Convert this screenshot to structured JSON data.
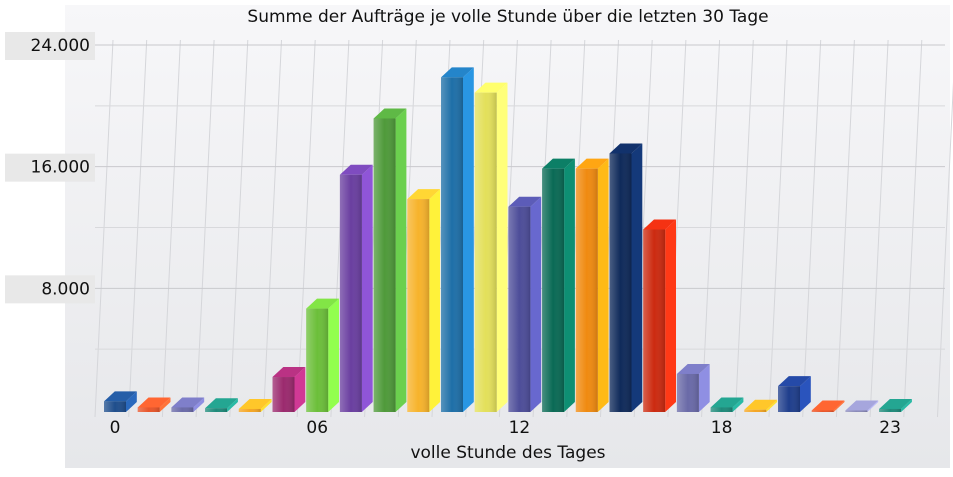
{
  "chart_data": {
    "type": "bar3d",
    "title": "Summe der Aufträge je volle Stunde über die letzten 30 Tage",
    "x_label": "volle Stunde des Tages",
    "categories": [
      "0",
      null,
      null,
      null,
      null,
      null,
      "06",
      null,
      null,
      null,
      null,
      null,
      "12",
      null,
      null,
      null,
      null,
      null,
      "18",
      null,
      null,
      null,
      null,
      "23"
    ],
    "values": [
      700,
      300,
      300,
      250,
      200,
      2300,
      6800,
      15600,
      19300,
      14000,
      22000,
      21000,
      13500,
      16000,
      16000,
      17000,
      12000,
      2500,
      300,
      150,
      1700,
      100,
      100,
      200
    ],
    "colors": [
      "#1f4e8c",
      "#e8552a",
      "#6a6aa8",
      "#1e8a7a",
      "#f5a623",
      "#9b2a6e",
      "#6cbf3a",
      "#6a3fa0",
      "#4f9a3a",
      "#f7b32b",
      "#1e6fa8",
      "#e3e05a",
      "#4d4d99",
      "#0a6a55",
      "#f08a10",
      "#0f2a5a",
      "#cc2a10",
      "#6a6aa8",
      "#1e8a7a",
      "#f5a623",
      "#1f3e8c",
      "#e8552a",
      "#8a8ab8",
      "#1e8a7a"
    ],
    "ylim": [
      0,
      24000
    ],
    "yticks": [
      {
        "value": 8000,
        "label": "8.000"
      },
      {
        "value": 16000,
        "label": "16.000"
      },
      {
        "value": 24000,
        "label": "24.000"
      }
    ],
    "grid": true
  }
}
